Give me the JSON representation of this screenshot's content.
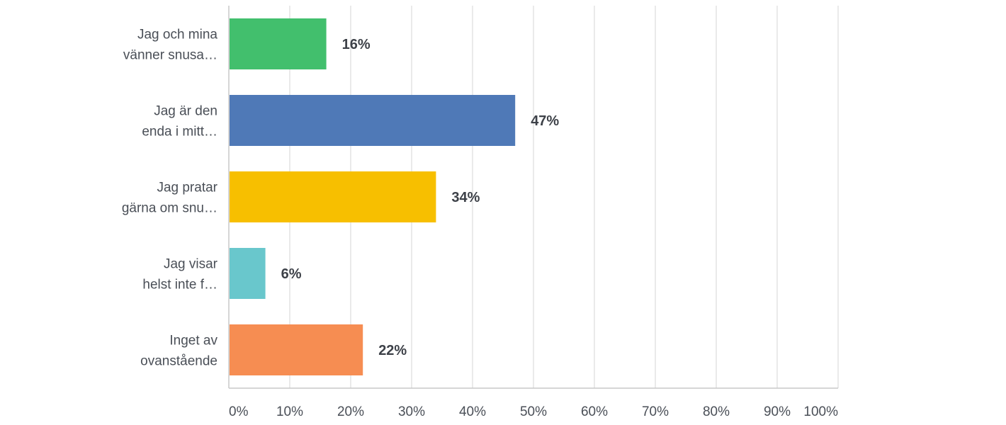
{
  "chart_data": {
    "type": "bar",
    "orientation": "horizontal",
    "categories": [
      [
        "Jag och mina",
        "vänner snusa…"
      ],
      [
        "Jag är den",
        "enda i mitt…"
      ],
      [
        "Jag pratar",
        "gärna om snu…"
      ],
      [
        "Jag visar",
        "helst inte f…"
      ],
      [
        "Inget av",
        "ovanstående"
      ]
    ],
    "values": [
      16,
      47,
      34,
      6,
      22
    ],
    "value_labels": [
      "16%",
      "47%",
      "34%",
      "6%",
      "22%"
    ],
    "colors": [
      "#42bf6d",
      "#4f79b7",
      "#f7bf00",
      "#69c7cc",
      "#f68d52"
    ],
    "xlim": [
      0,
      100
    ],
    "xticks": [
      0,
      10,
      20,
      30,
      40,
      50,
      60,
      70,
      80,
      90,
      100
    ],
    "xtick_labels": [
      "0%",
      "10%",
      "20%",
      "30%",
      "40%",
      "50%",
      "60%",
      "70%",
      "80%",
      "90%",
      "100%"
    ],
    "grid": true,
    "title": "",
    "xlabel": "",
    "ylabel": ""
  }
}
